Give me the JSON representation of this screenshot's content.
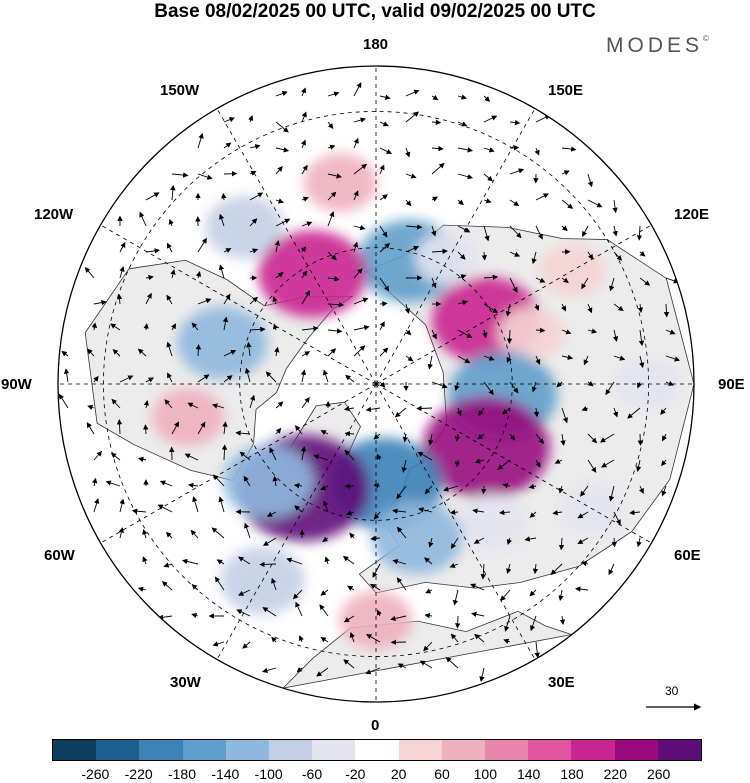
{
  "title": "Base 08/02/2025 00 UTC, valid 09/02/2025 00 UTC",
  "brand": "MODES",
  "brand_mark": "©",
  "longitude_labels": {
    "n180": "180",
    "e150": "150E",
    "e120": "120E",
    "e90": "90E",
    "e60": "60E",
    "e30": "30E",
    "s0": "0",
    "w30": "30W",
    "w60": "60W",
    "w90": "90W",
    "w120": "120W",
    "w150": "150W"
  },
  "reference_vector": "30",
  "colorbar": {
    "colors": [
      "#0f3d5e",
      "#1c5f8f",
      "#3a82b8",
      "#5f9ecb",
      "#8fb8de",
      "#c4cfe6",
      "#e4e4f1",
      "#ffffff",
      "#f6d4d4",
      "#efb0bf",
      "#ea86ae",
      "#e1559e",
      "#c92590",
      "#980a7e",
      "#5f0d7a"
    ],
    "ticks": [
      "-260",
      "-220",
      "-180",
      "-140",
      "-100",
      "-60",
      "-20",
      "20",
      "60",
      "100",
      "140",
      "180",
      "220",
      "260"
    ]
  },
  "anomalies": [
    {
      "lat": 62,
      "lon": 165,
      "value": -160
    },
    {
      "lat": 58,
      "lon": 150,
      "value": -40
    },
    {
      "lat": 62,
      "lon": 120,
      "value": 180
    },
    {
      "lat": 54,
      "lon": 108,
      "value": 40
    },
    {
      "lat": 62,
      "lon": 85,
      "value": -180
    },
    {
      "lat": 62,
      "lon": 60,
      "value": 240
    },
    {
      "lat": 50,
      "lon": 40,
      "value": -60
    },
    {
      "lat": 68,
      "lon": 5,
      "value": -200
    },
    {
      "lat": 55,
      "lon": 15,
      "value": -120
    },
    {
      "lat": 62,
      "lon": -35,
      "value": 260
    },
    {
      "lat": 58,
      "lon": -48,
      "value": -120
    },
    {
      "lat": 40,
      "lon": -30,
      "value": -100
    },
    {
      "lat": 38,
      "lon": 0,
      "value": 60
    },
    {
      "lat": 48,
      "lon": -80,
      "value": 60
    },
    {
      "lat": 55,
      "lon": -105,
      "value": -120
    },
    {
      "lat": 45,
      "lon": -140,
      "value": -80
    },
    {
      "lat": 62,
      "lon": -150,
      "value": 180
    },
    {
      "lat": 45,
      "lon": -170,
      "value": 60
    },
    {
      "lat": 40,
      "lon": 120,
      "value": 40
    },
    {
      "lat": 30,
      "lon": 90,
      "value": -40
    },
    {
      "lat": 35,
      "lon": 60,
      "value": -40
    }
  ]
}
